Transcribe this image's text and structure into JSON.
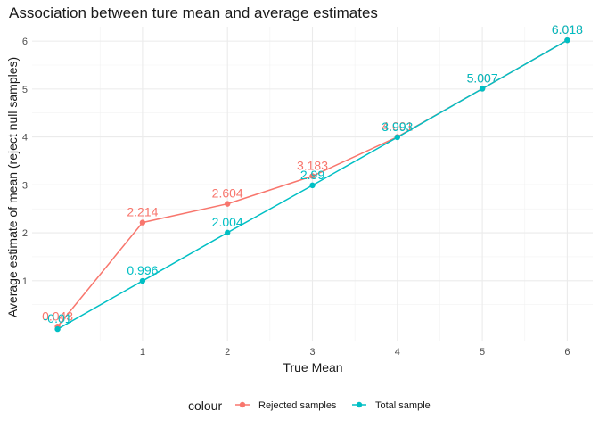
{
  "chart_data": {
    "type": "line",
    "title": "Association between ture mean and average estimates",
    "xlabel": "True Mean",
    "ylabel": "Average estimate of mean (reject null samples)",
    "xlim": [
      -0.3,
      6.3
    ],
    "ylim": [
      -0.25,
      6.3
    ],
    "xticks": [
      1,
      2,
      3,
      4,
      5,
      6
    ],
    "yticks": [
      1,
      2,
      3,
      4,
      5,
      6
    ],
    "grid": true,
    "legend": {
      "title": "colour",
      "position": "bottom"
    },
    "series": [
      {
        "name": "Rejected samples",
        "color": "#F8766D",
        "x": [
          0,
          1,
          2,
          3,
          4,
          5,
          6
        ],
        "y": [
          0.043,
          2.214,
          2.604,
          3.183,
          4.001,
          5.007,
          6.018
        ],
        "labels": [
          "0.043",
          "2.214",
          "2.604",
          "3.183",
          "4.001",
          "5.007",
          "6.018"
        ]
      },
      {
        "name": "Total sample",
        "color": "#00BFC4",
        "x": [
          0,
          1,
          2,
          3,
          4,
          5,
          6
        ],
        "y": [
          -0.01,
          0.996,
          2.004,
          2.99,
          3.993,
          5.007,
          6.018
        ],
        "labels": [
          "-0.01",
          "0.996",
          "2.004",
          "2.99",
          "3.993",
          "5.007",
          "6.018"
        ]
      }
    ]
  }
}
